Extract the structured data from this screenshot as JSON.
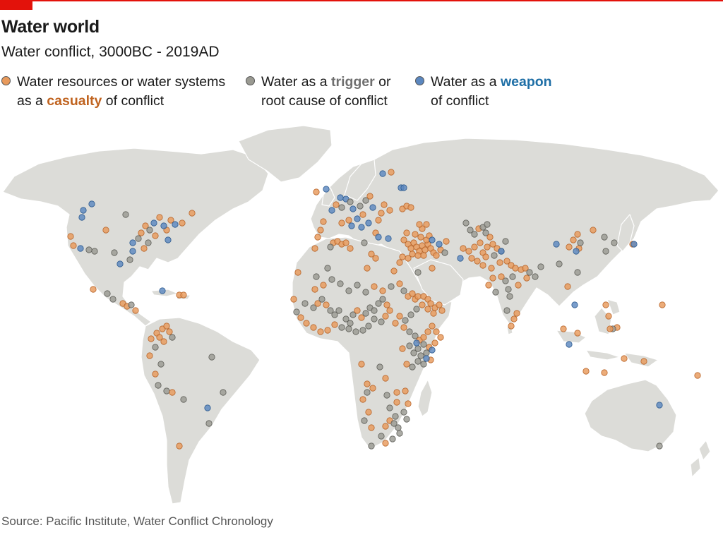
{
  "header": {
    "title": "Water world",
    "subtitle": "Water conflict, 3000BC - 2019AD"
  },
  "legend": {
    "casualty": {
      "line1": "Water resources or water systems",
      "line2_pre": "as a ",
      "line2_hl": "casualty",
      "line2_post": " of conflict",
      "color": "#e89a5c"
    },
    "trigger": {
      "line1_pre": "Water as a ",
      "line1_hl": "trigger",
      "line1_post": " or",
      "line2": "root cause of conflict",
      "color": "#9a9a92"
    },
    "weapon": {
      "line1_pre": "Water as a ",
      "line1_hl": "weapon",
      "line2": "of conflict",
      "color": "#5b87bf"
    }
  },
  "colors": {
    "land": "#dcdcd8",
    "border": "#ffffff",
    "casualty": "#e89a5c",
    "trigger": "#9a9a92",
    "weapon": "#5b87bf"
  },
  "source": "Source: Pacific Institute, Water Conflict Chronology"
}
